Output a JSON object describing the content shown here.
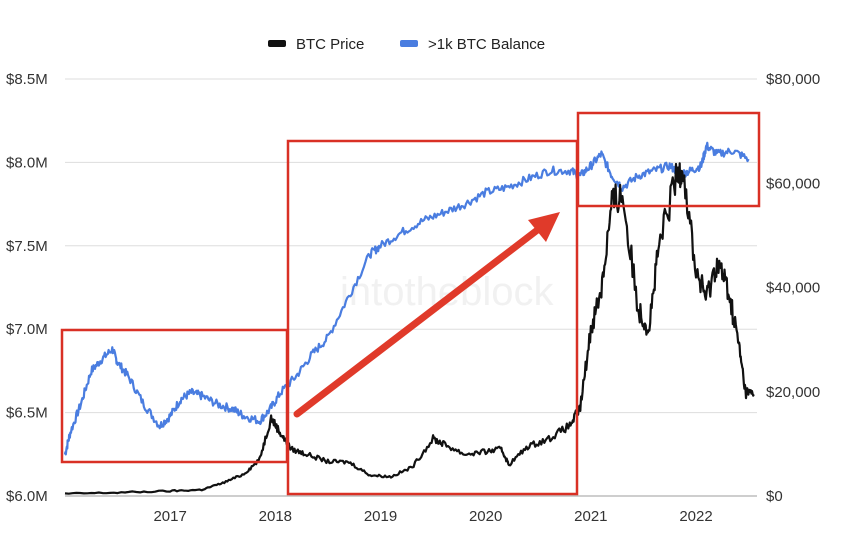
{
  "chart_data": {
    "type": "line",
    "title": "",
    "watermark": "intotheblock",
    "legend_position": "top-center",
    "grid": true,
    "x_ticks": [
      "2017",
      "2018",
      "2019",
      "2020",
      "2021",
      "2022"
    ],
    "x_range": [
      2016.0,
      2022.58
    ],
    "y_left": {
      "ticks": [
        "$6.0M",
        "$6.5M",
        "$7.0M",
        "$7.5M",
        "$8.0M",
        "$8.5M"
      ],
      "range": [
        6.0,
        8.5
      ],
      "unit": "USD millions"
    },
    "y_right": {
      "ticks": [
        "$0",
        "$20,000",
        "$40,000",
        "$60,000",
        "$80,000"
      ],
      "range": [
        0,
        80000
      ],
      "unit": "USD"
    },
    "series": [
      {
        "name": ">1k BTC Balance",
        "axis": "left",
        "color": "#4a7de0",
        "x": [
          2016.0,
          2016.05,
          2016.15,
          2016.25,
          2016.35,
          2016.45,
          2016.5,
          2016.6,
          2016.75,
          2016.9,
          2017.0,
          2017.1,
          2017.2,
          2017.3,
          2017.45,
          2017.6,
          2017.7,
          2017.85,
          2017.95,
          2018.05,
          2018.2,
          2018.35,
          2018.5,
          2018.7,
          2018.9,
          2019.0,
          2019.2,
          2019.4,
          2019.6,
          2019.8,
          2020.0,
          2020.2,
          2020.4,
          2020.6,
          2020.8,
          2020.9,
          2021.0,
          2021.1,
          2021.2,
          2021.3,
          2021.45,
          2021.6,
          2021.75,
          2021.85,
          2021.95,
          2022.05,
          2022.1,
          2022.2,
          2022.35,
          2022.5
        ],
        "values": [
          6.25,
          6.38,
          6.55,
          6.75,
          6.82,
          6.88,
          6.8,
          6.72,
          6.55,
          6.42,
          6.48,
          6.58,
          6.62,
          6.6,
          6.55,
          6.52,
          6.48,
          6.45,
          6.52,
          6.62,
          6.72,
          6.85,
          6.95,
          7.2,
          7.45,
          7.5,
          7.58,
          7.65,
          7.7,
          7.75,
          7.82,
          7.85,
          7.9,
          7.95,
          7.95,
          7.92,
          7.98,
          8.05,
          7.92,
          7.85,
          7.92,
          7.95,
          7.98,
          7.93,
          7.95,
          7.98,
          8.1,
          8.05,
          8.07,
          8.02
        ]
      },
      {
        "name": "BTC Price",
        "axis": "right",
        "color": "#111111",
        "x": [
          2016.0,
          2016.5,
          2017.0,
          2017.3,
          2017.5,
          2017.7,
          2017.85,
          2017.96,
          2018.05,
          2018.15,
          2018.3,
          2018.5,
          2018.7,
          2018.9,
          2019.1,
          2019.3,
          2019.5,
          2019.6,
          2019.8,
          2020.0,
          2020.15,
          2020.22,
          2020.4,
          2020.6,
          2020.8,
          2020.9,
          2021.0,
          2021.1,
          2021.2,
          2021.3,
          2021.45,
          2021.55,
          2021.65,
          2021.8,
          2021.87,
          2022.0,
          2022.1,
          2022.2,
          2022.3,
          2022.4,
          2022.47,
          2022.55
        ],
        "values": [
          430,
          650,
          950,
          1200,
          2500,
          4200,
          7000,
          15000,
          12000,
          9000,
          8000,
          6600,
          6500,
          4000,
          3700,
          5500,
          11000,
          10000,
          8000,
          8500,
          9000,
          6000,
          9500,
          11000,
          13500,
          17000,
          32000,
          40000,
          56000,
          58000,
          36000,
          32000,
          48000,
          60000,
          64000,
          43000,
          38000,
          45000,
          40000,
          30000,
          20000,
          19500
        ]
      }
    ]
  },
  "legend": {
    "items": [
      {
        "label": "BTC Price",
        "color": "#111111"
      },
      {
        "label": ">1k BTC Balance",
        "color": "#4a7de0"
      }
    ]
  },
  "annotations": {
    "box_color": "#d93025",
    "arrow_color": "#e03a2a"
  }
}
